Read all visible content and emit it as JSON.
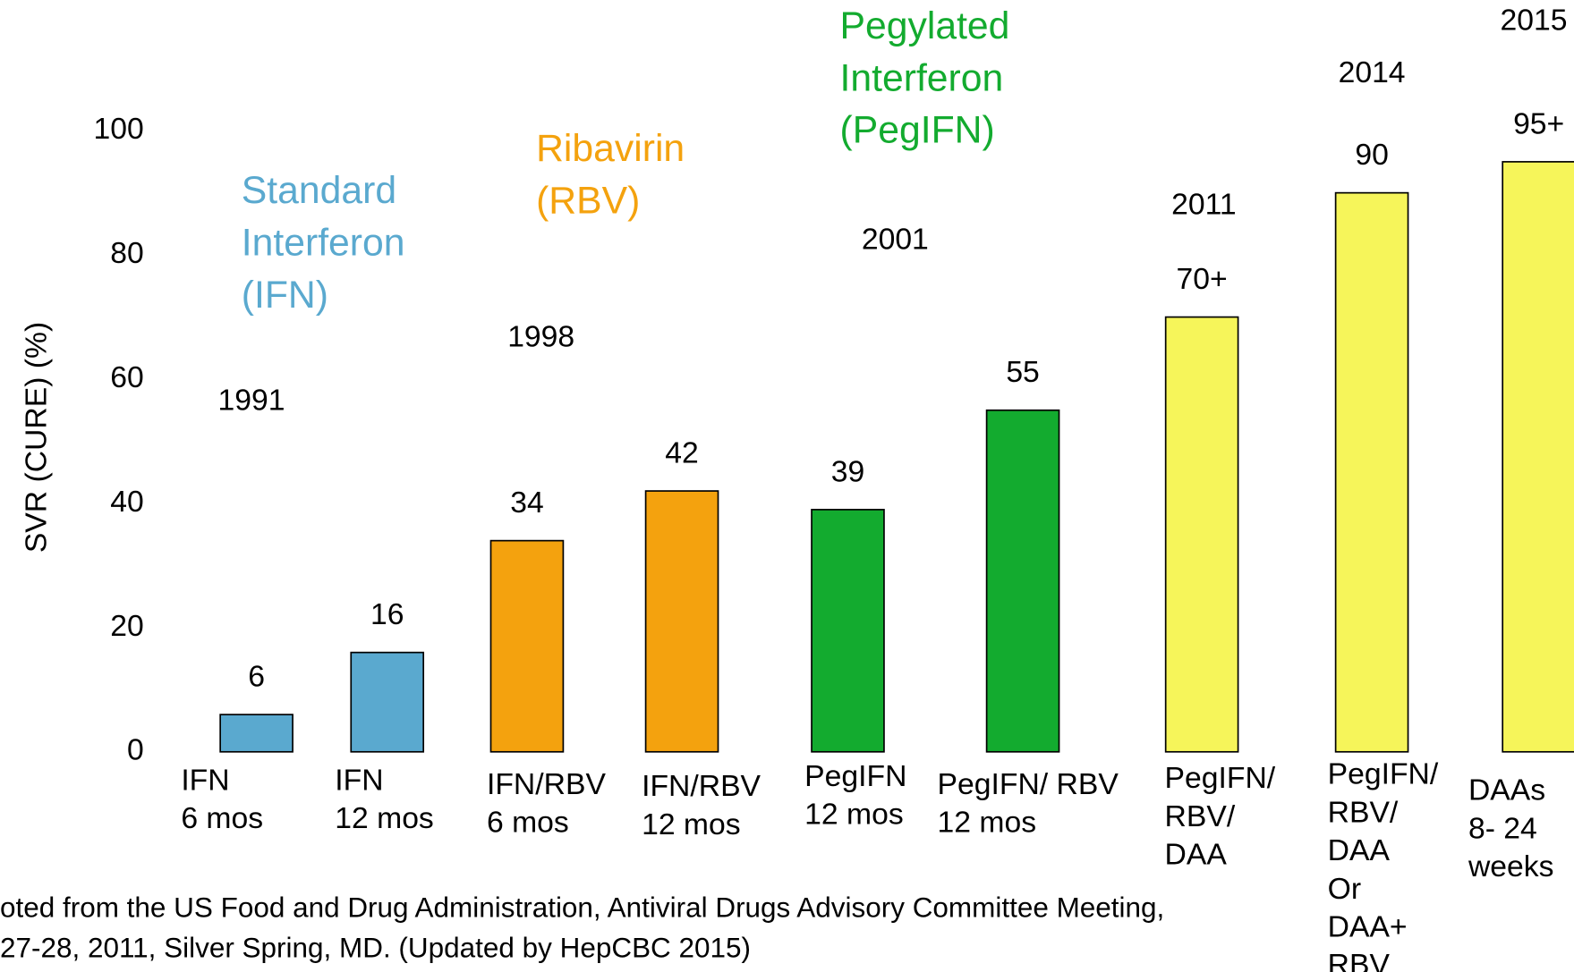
{
  "chart_data": {
    "type": "bar",
    "y_label": "SVR (CURE)  (%)",
    "categories": [
      [
        "IFN",
        "6 mos"
      ],
      [
        "IFN",
        "12 mos"
      ],
      [
        "IFN/RBV",
        "6 mos"
      ],
      [
        "IFN/RBV",
        "12 mos"
      ],
      [
        "PegIFN",
        "12 mos"
      ],
      [
        "PegIFN/ RBV",
        "12 mos"
      ],
      [
        "PegIFN/",
        "RBV/",
        "DAA"
      ],
      [
        "PegIFN/",
        "RBV/",
        "DAA",
        "Or",
        "DAA+",
        "RBV"
      ],
      [
        "DAAs",
        "8- 24",
        "weeks"
      ]
    ],
    "values": [
      6,
      16,
      34,
      42,
      39,
      55,
      70,
      90,
      95
    ],
    "value_labels": [
      "6",
      "16",
      "34",
      "42",
      "39",
      "55",
      "70+",
      "90",
      "95+"
    ],
    "colors": [
      "#5aa9cf",
      "#5aa9cf",
      "#f4a20e",
      "#f4a20e",
      "#13ab2f",
      "#13ab2f",
      "#f6f55a",
      "#f6f55a",
      "#f6f55a"
    ],
    "years": [
      "1991",
      null,
      "1998",
      null,
      "2001",
      null,
      "2011",
      "2014",
      "2015"
    ],
    "groups": [
      {
        "lines": [
          "Standard",
          "Interferon",
          "(IFN)"
        ],
        "color": "#5aa9cf"
      },
      {
        "lines": [
          "Ribavirin",
          "(RBV)"
        ],
        "color": "#f4a20e"
      },
      {
        "lines": [
          "Pegylated",
          "Interferon",
          "(PegIFN)"
        ],
        "color": "#13ab2f"
      }
    ],
    "ylim": [
      0,
      100
    ],
    "yticks": [
      0,
      20,
      40,
      60,
      80,
      100
    ],
    "grid": false,
    "footnote": [
      "oted from the US Food and Drug Administration, Antiviral Drugs Advisory Committee Meeting,",
      " 27-28, 2011, Silver Spring, MD. (Updated by HepCBC 2015)"
    ]
  }
}
